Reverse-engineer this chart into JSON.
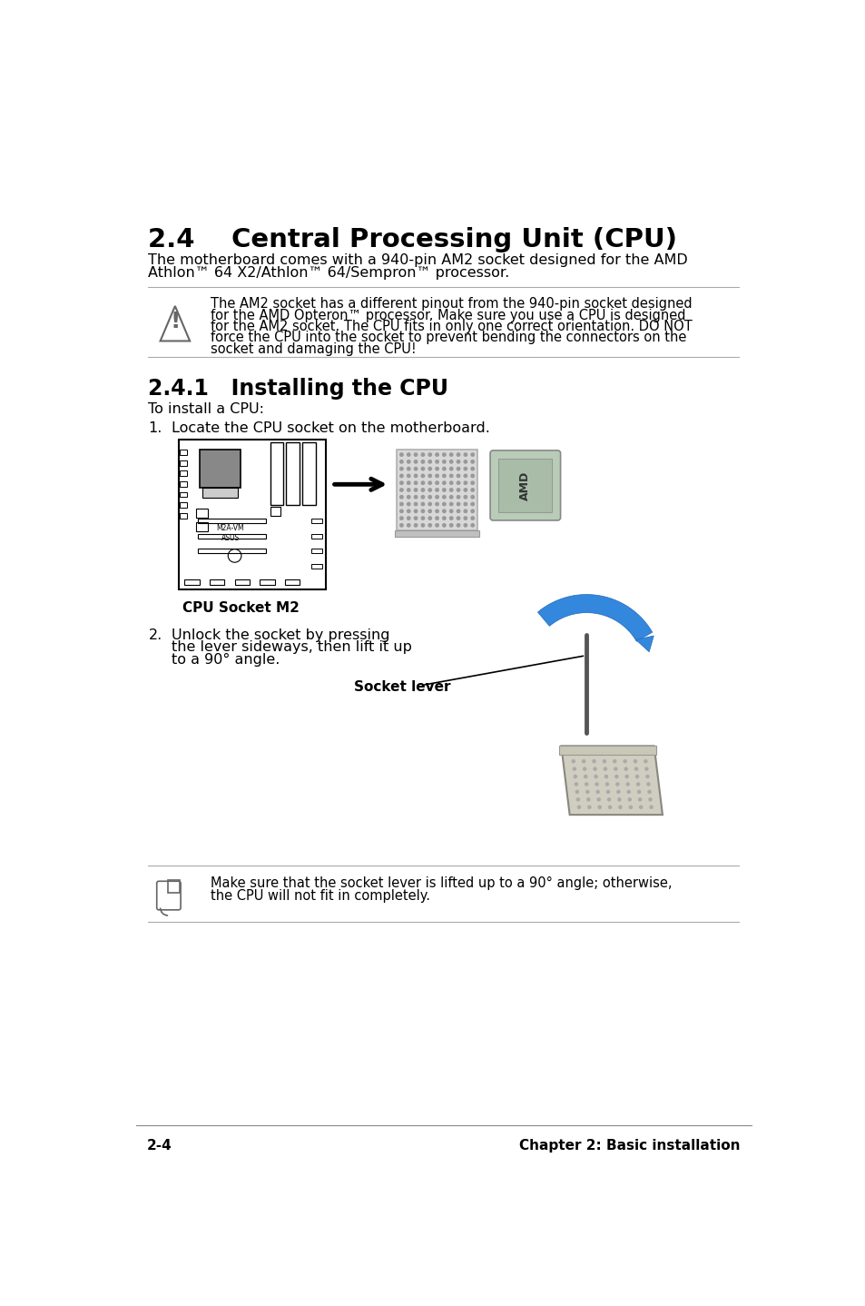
{
  "title": "2.4    Central Processing Unit (CPU)",
  "subtitle_line1": "The motherboard comes with a 940-pin AM2 socket designed for the AMD",
  "subtitle_line2": "Athlon™ 64 X2/Athlon™ 64/Sempron™ processor.",
  "warning_text_line1": "The AM2 socket has a different pinout from the 940-pin socket designed",
  "warning_text_line2": "for the AMD Opteron™ processor. Make sure you use a CPU is designed",
  "warning_text_line3": "for the AM2 socket. The CPU fits in only one correct orientation. DO NOT",
  "warning_text_line4": "force the CPU into the socket to prevent bending the connectors on the",
  "warning_text_line5": "socket and damaging the CPU!",
  "section_241": "2.4.1   Installing the CPU",
  "intro_text": "To install a CPU:",
  "step1_text": "Locate the CPU socket on the motherboard.",
  "socket_label": "CPU Socket M2",
  "step2_text_line1": "Unlock the socket by pressing",
  "step2_text_line2": "the lever sideways, then lift it up",
  "step2_text_line3": "to a 90° angle.",
  "socket_lever_label": "Socket lever",
  "note_text_line1": "Make sure that the socket lever is lifted up to a 90° angle; otherwise,",
  "note_text_line2": "the CPU will not fit in completely.",
  "footer_left": "2-4",
  "footer_right": "Chapter 2: Basic installation",
  "bg_color": "#ffffff",
  "title_size": 21,
  "section_size": 17,
  "body_size": 11.5,
  "small_size": 10.5,
  "footer_size": 11
}
